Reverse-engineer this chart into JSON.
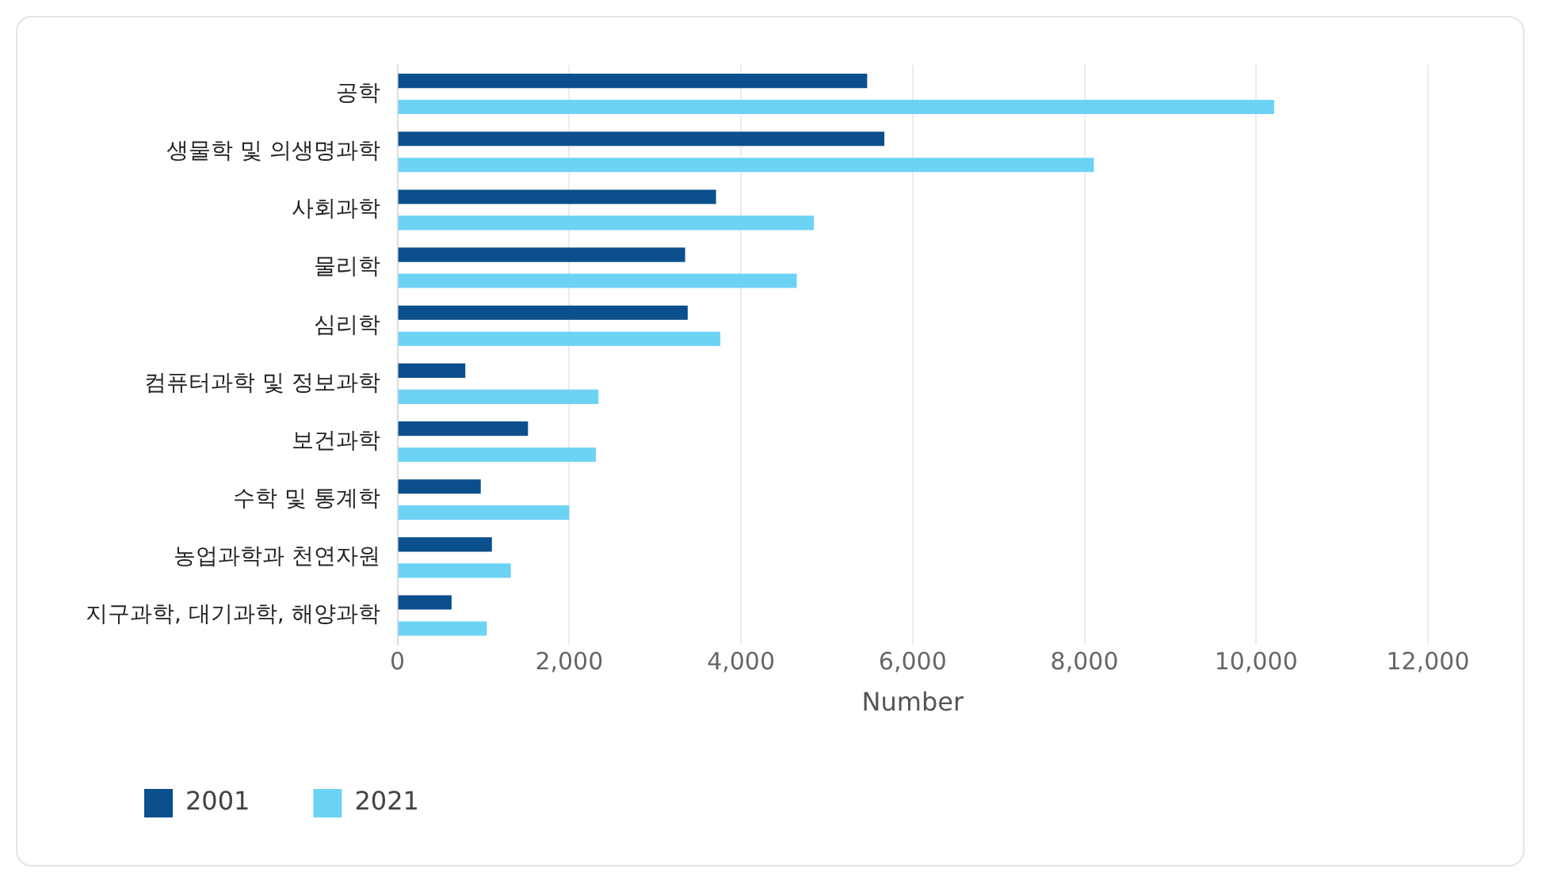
{
  "chart_data": {
    "type": "bar",
    "orientation": "horizontal",
    "xlabel": "Number",
    "categories": [
      "공학",
      "생물학 및 의생명과학",
      "사회과학",
      "물리학",
      "심리학",
      "컴퓨터과학 및 정보과학",
      "보건과학",
      "수학 및 통계학",
      "농업과학과 천연자원",
      "지구과학, 대기과학, 해양과학"
    ],
    "series": [
      {
        "name": "2001",
        "color": "#0b4f8c",
        "values": [
          5470,
          5670,
          3710,
          3350,
          3380,
          790,
          1520,
          970,
          1100,
          630
        ]
      },
      {
        "name": "2021",
        "color": "#6dd3f5",
        "values": [
          10210,
          8110,
          4850,
          4650,
          3760,
          2340,
          2310,
          2000,
          1320,
          1040
        ]
      }
    ],
    "xlim": [
      0,
      12000
    ],
    "xticks": [
      0,
      {
        "value": 2000,
        "label": "2,000"
      },
      {
        "value": 4000,
        "label": "4,000"
      },
      {
        "value": 6000,
        "label": "6,000"
      },
      {
        "value": 8000,
        "label": "8,000"
      },
      {
        "value": 10000,
        "label": "10,000"
      },
      {
        "value": 12000,
        "label": "12,000"
      }
    ],
    "grid": "x",
    "legend": "bottom"
  }
}
